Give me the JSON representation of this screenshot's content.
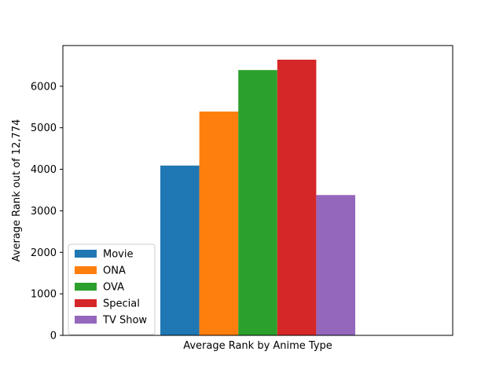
{
  "chart_data": {
    "type": "bar",
    "title": "",
    "xlabel": "Average Rank by Anime Type",
    "ylabel": "Average Rank out of 12,774",
    "ylim": [
      0,
      6980
    ],
    "yticks": [
      0,
      1000,
      2000,
      3000,
      4000,
      5000,
      6000
    ],
    "grid": false,
    "legend_position": "lower-left",
    "series": [
      {
        "name": "Movie",
        "value": 4090,
        "color": "#1f77b4"
      },
      {
        "name": "ONA",
        "value": 5390,
        "color": "#ff7f0e"
      },
      {
        "name": "OVA",
        "value": 6390,
        "color": "#2ca02c"
      },
      {
        "name": "Special",
        "value": 6640,
        "color": "#d62728"
      },
      {
        "name": "TV Show",
        "value": 3380,
        "color": "#9467bd"
      }
    ]
  }
}
